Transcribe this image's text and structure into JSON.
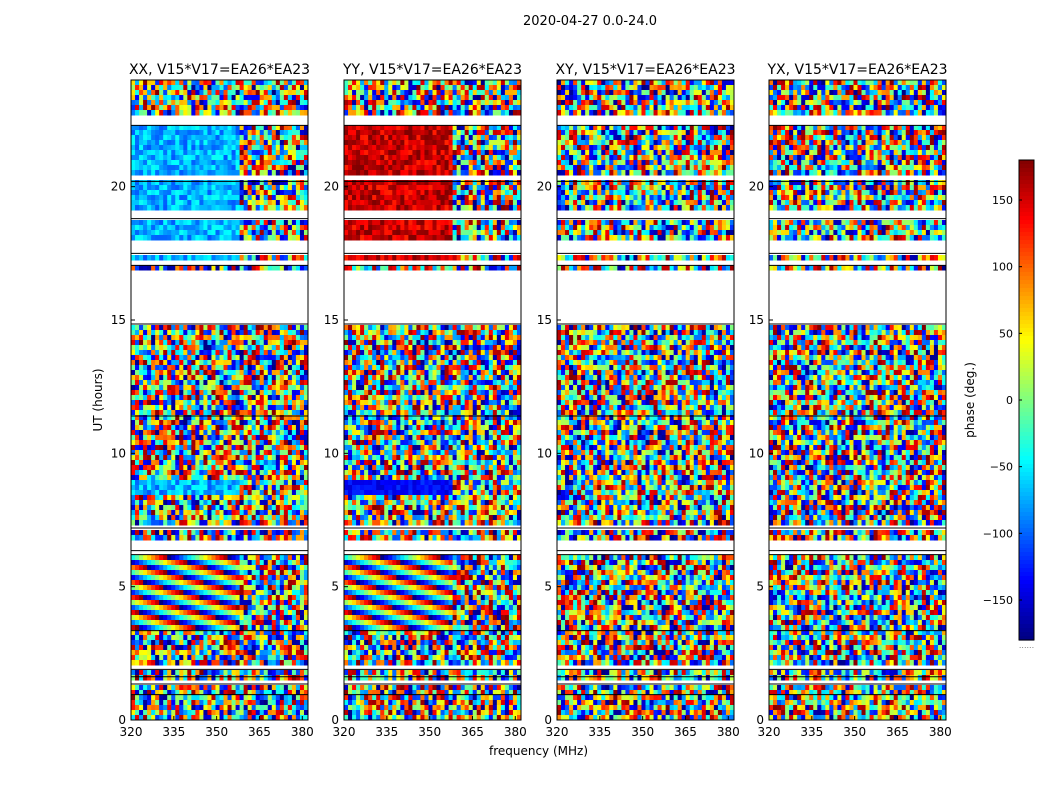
{
  "suptitle": "2020-04-27 0.0-24.0",
  "chart_data": {
    "type": "heatmap",
    "colormap": "jet",
    "panels": [
      {
        "title": "XX, V15*V17=EA26*EA23"
      },
      {
        "title": "YY, V15*V17=EA26*EA23"
      },
      {
        "title": "XY, V15*V17=EA26*EA23"
      },
      {
        "title": "YX, V15*V17=EA26*EA23"
      }
    ],
    "xlabel": "frequency (MHz)",
    "ylabel": "UT (hours)",
    "xlim": [
      320,
      382
    ],
    "ylim": [
      0,
      24
    ],
    "xticks": [
      320,
      335,
      350,
      365,
      380
    ],
    "yticks": [
      0,
      5,
      10,
      15,
      20
    ],
    "colorbar": {
      "label": "phase (deg.)",
      "range": [
        -180,
        180
      ],
      "ticks": [
        150,
        100,
        50,
        0,
        -50,
        -100,
        -150
      ],
      "tick_labels": [
        "150",
        "100",
        "50",
        "0",
        "−50",
        "−100",
        "−150"
      ],
      "bottom_text": "......"
    },
    "flagged_hours": [
      [
        0.95,
        1.0
      ],
      [
        1.35,
        1.45
      ],
      [
        1.62,
        1.7
      ],
      [
        1.9,
        1.97
      ],
      [
        3.35,
        3.42
      ],
      [
        6.2,
        6.3
      ],
      [
        6.35,
        6.8
      ],
      [
        7.2,
        7.3
      ],
      [
        11.4,
        11.5
      ],
      [
        14.85,
        16.8
      ],
      [
        17.05,
        17.2
      ],
      [
        17.5,
        18.0
      ],
      [
        18.8,
        19.2
      ],
      [
        20.2,
        20.4
      ],
      [
        22.3,
        22.6
      ]
    ]
  }
}
